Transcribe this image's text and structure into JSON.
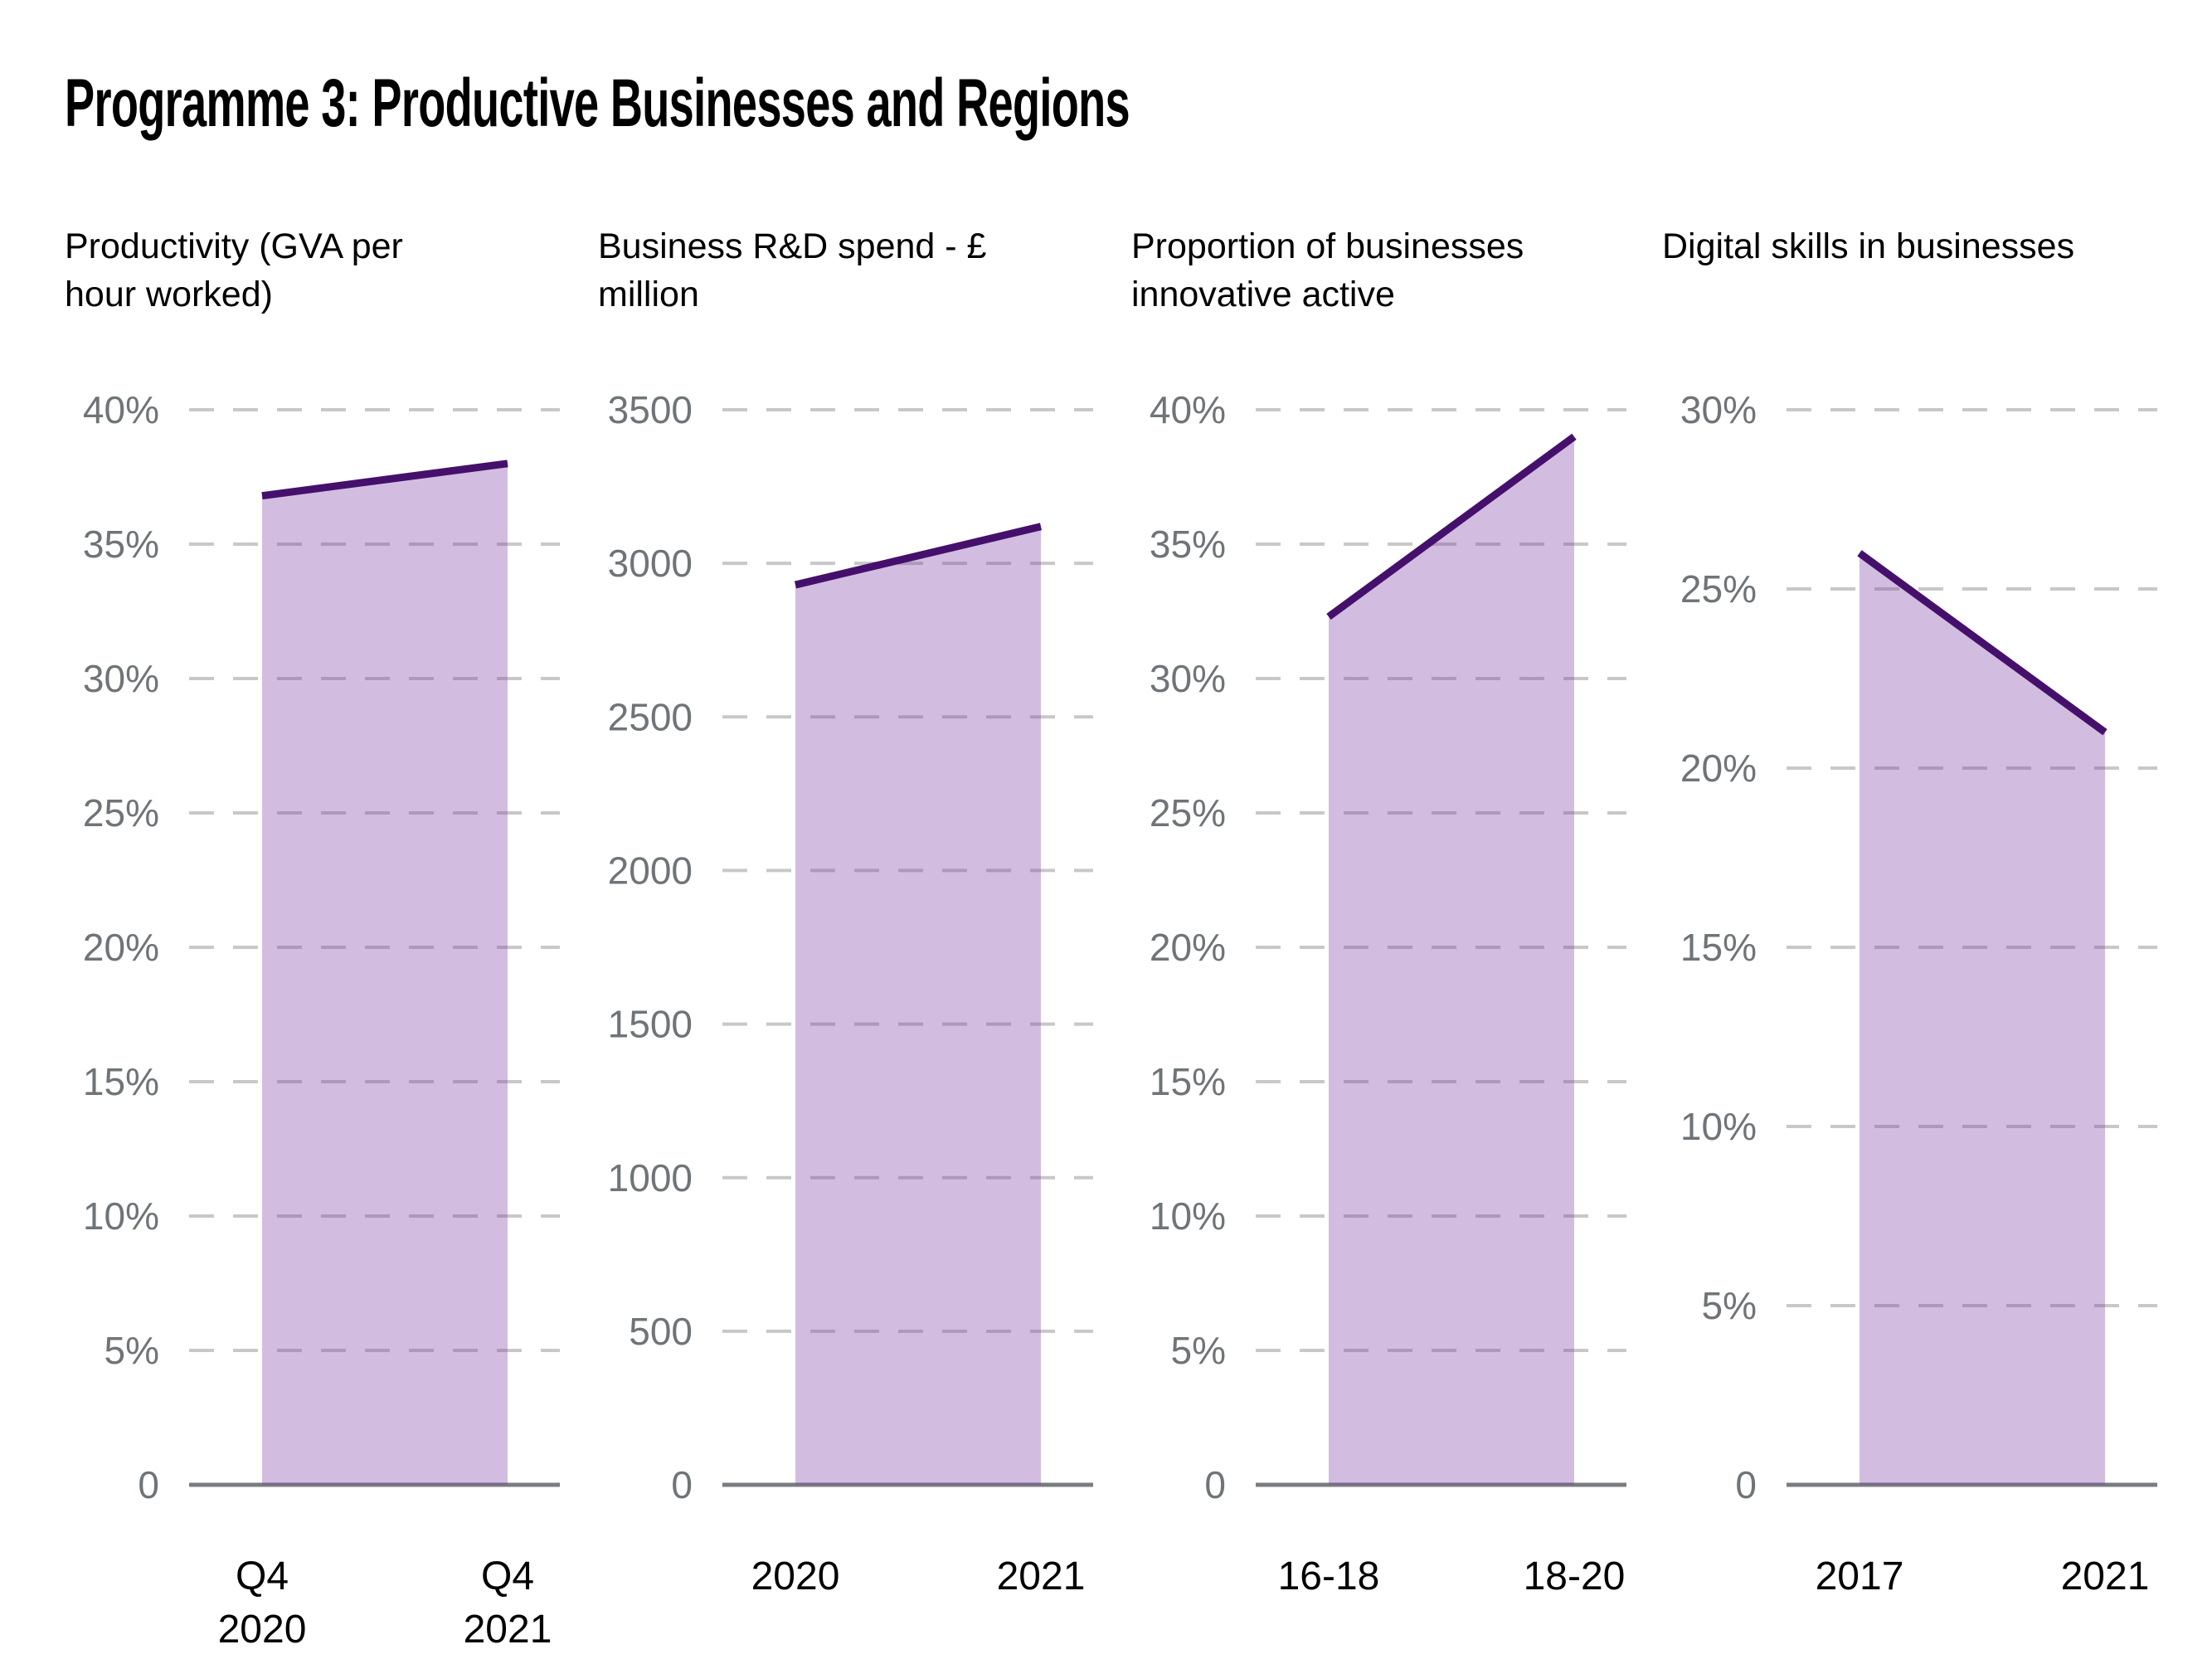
{
  "page": {
    "title": "Programme 3: Productive Businesses and Regions",
    "background": "#ffffff"
  },
  "style": {
    "line_color": "#45106b",
    "area_fill_color": "rgba(123,63,168,0.34)",
    "grid_color": "#c8c8c8",
    "axis_color": "#7a7d80",
    "tick_text_color": "#6f7478",
    "label_text_color": "#000000"
  },
  "chart_data": [
    {
      "type": "area",
      "title": "Productivity (GVA per hour worked)",
      "title_lines": [
        "Productivity (GVA per",
        "hour worked)"
      ],
      "categories": [
        [
          "Q4",
          "2020"
        ],
        [
          "Q4",
          "2021"
        ]
      ],
      "values": [
        36.8,
        38.0
      ],
      "ylim": [
        0,
        40
      ],
      "yticks": [
        40,
        35,
        30,
        25,
        20,
        15,
        10,
        5,
        0
      ],
      "ytick_labels": [
        "40%",
        "35%",
        "30%",
        "25%",
        "20%",
        "15%",
        "10%",
        "5%",
        "0"
      ],
      "grid": "dashed-horizontal",
      "legend": "none"
    },
    {
      "type": "area",
      "title": "Business R&D spend - £ million",
      "title_lines": [
        "Business R&D spend - £",
        "million"
      ],
      "categories": [
        [
          "2020"
        ],
        [
          "2021"
        ]
      ],
      "values": [
        2930,
        3120
      ],
      "ylim": [
        0,
        3500
      ],
      "yticks": [
        3500,
        3000,
        2500,
        2000,
        1500,
        1000,
        500,
        0
      ],
      "ytick_labels": [
        "3500",
        "3000",
        "2500",
        "2000",
        "1500",
        "1000",
        "500",
        "0"
      ],
      "grid": "dashed-horizontal",
      "legend": "none"
    },
    {
      "type": "area",
      "title": "Proportion of businesses innovative active",
      "title_lines": [
        "Proportion of businesses",
        "innovative active"
      ],
      "categories": [
        [
          "16-18"
        ],
        [
          "18-20"
        ]
      ],
      "values": [
        32.3,
        39.0
      ],
      "ylim": [
        0,
        40
      ],
      "yticks": [
        40,
        35,
        30,
        25,
        20,
        15,
        10,
        5,
        0
      ],
      "ytick_labels": [
        "40%",
        "35%",
        "30%",
        "25%",
        "20%",
        "15%",
        "10%",
        "5%",
        "0"
      ],
      "grid": "dashed-horizontal",
      "legend": "none"
    },
    {
      "type": "area",
      "title": "Digital skills in businesses",
      "title_lines": [
        "Digital skills in businesses"
      ],
      "categories": [
        [
          "2017"
        ],
        [
          "2021"
        ]
      ],
      "values": [
        26,
        21
      ],
      "ylim": [
        0,
        30
      ],
      "yticks": [
        30,
        25,
        20,
        15,
        10,
        5,
        0
      ],
      "ytick_labels": [
        "30%",
        "25%",
        "20%",
        "15%",
        "10%",
        "5%",
        "0"
      ],
      "grid": "dashed-horizontal",
      "legend": "none"
    }
  ]
}
